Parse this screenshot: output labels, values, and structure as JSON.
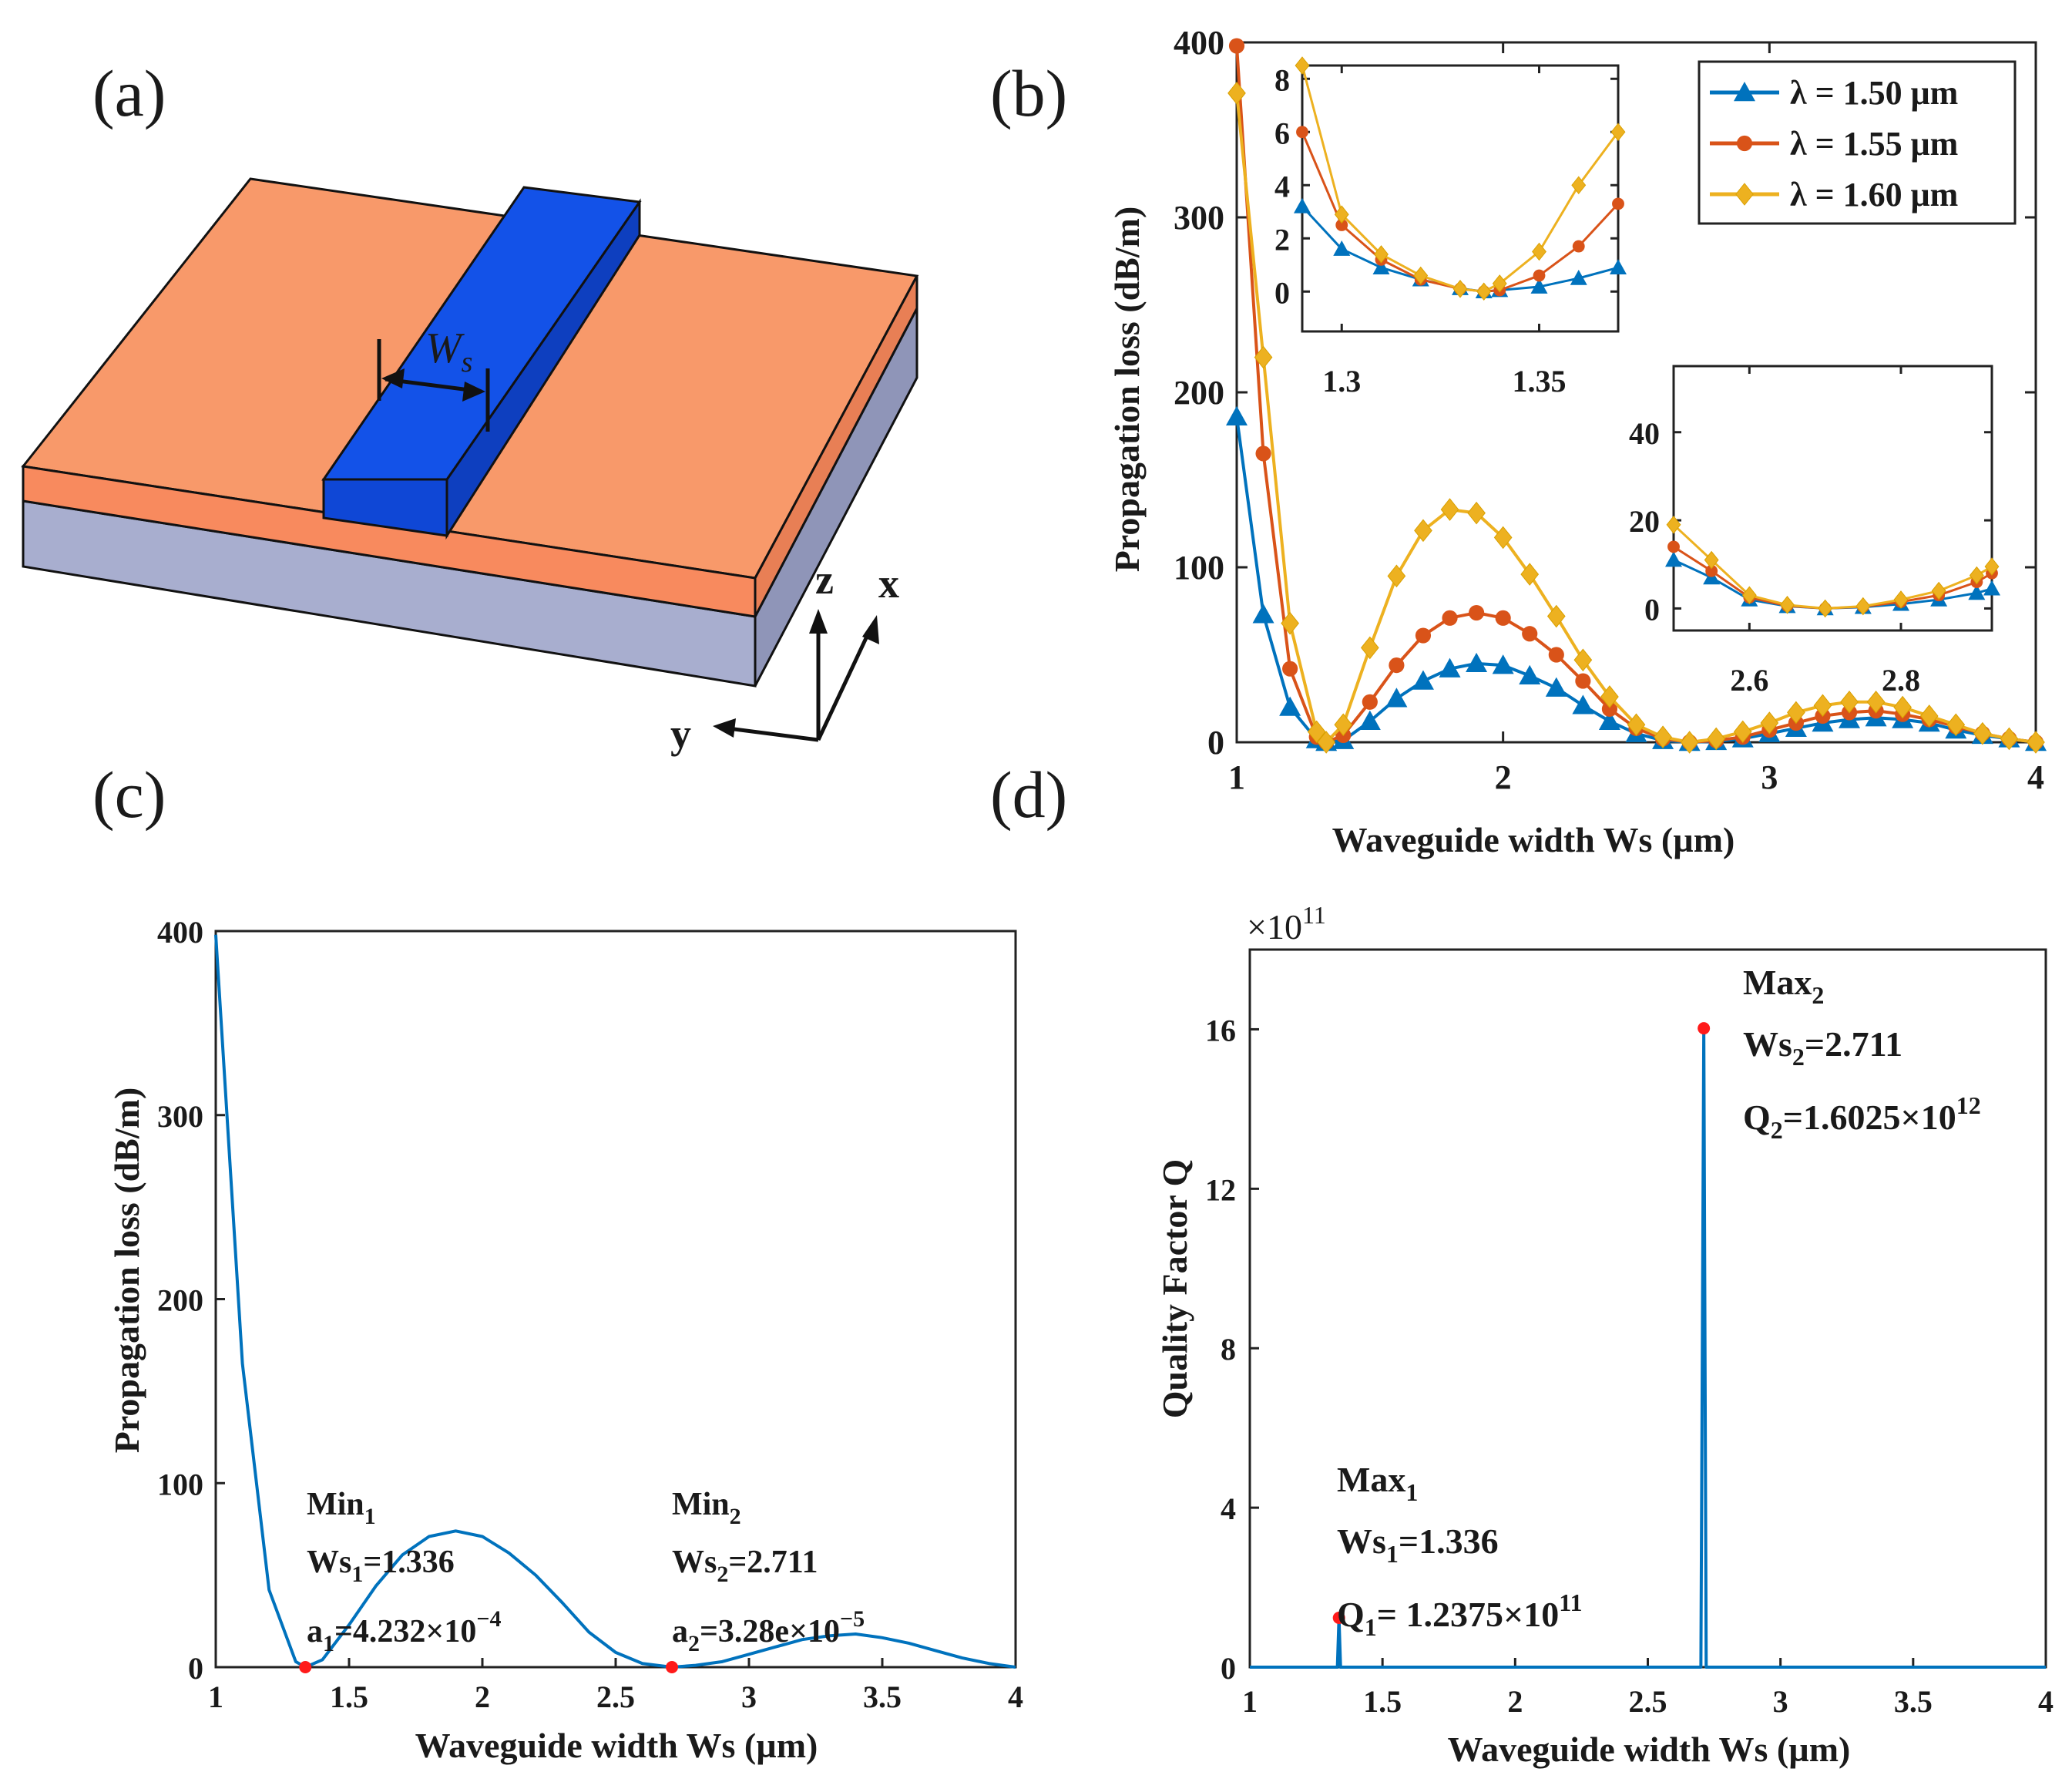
{
  "panels": {
    "a": "(a)",
    "b": "(b)",
    "c": "(c)",
    "d": "(d)"
  },
  "schematic": {
    "width_label": "W",
    "width_sub": "s",
    "axis_z": "z",
    "axis_x": "x",
    "axis_y": "y",
    "colors": {
      "slab_top": "#F8996A",
      "slab_front": "#F88A5E",
      "substrate": "#A8AECF",
      "ridge_top": "#1352E8",
      "ridge_front": "#0F47D6",
      "ridge_side": "#0E3FBF"
    }
  },
  "chart_data": [
    {
      "id": "b",
      "type": "line",
      "xlabel": "Waveguide width Ws (µm)",
      "ylabel": "Propagation loss (dB/m)",
      "xlim": [
        1,
        4
      ],
      "ylim": [
        0,
        400
      ],
      "xticks": [
        "1",
        "2",
        "3",
        "4"
      ],
      "yticks": [
        "0",
        "100",
        "200",
        "300",
        "400"
      ],
      "legend_position": "top-right",
      "series": [
        {
          "name": "λ = 1.50 μm",
          "color": "#0072BD",
          "marker": "triangle",
          "x": [
            1.0,
            1.1,
            1.2,
            1.3,
            1.336,
            1.4,
            1.5,
            1.6,
            1.7,
            1.8,
            1.9,
            2.0,
            2.1,
            2.2,
            2.3,
            2.4,
            2.5,
            2.6,
            2.7,
            2.8,
            2.9,
            3.0,
            3.1,
            3.2,
            3.3,
            3.4,
            3.5,
            3.6,
            3.7,
            3.8,
            3.9,
            4.0
          ],
          "values": [
            186,
            73,
            20,
            1.5,
            0,
            1,
            12,
            25,
            35,
            42,
            45,
            44,
            38,
            31,
            21,
            12,
            5,
            1,
            0,
            0.5,
            2,
            5,
            8,
            11,
            13,
            14,
            13,
            11,
            7,
            4,
            2,
            0
          ]
        },
        {
          "name": "λ = 1.55 μm",
          "color": "#D95319",
          "marker": "circle",
          "x": [
            1.0,
            1.1,
            1.2,
            1.3,
            1.336,
            1.4,
            1.5,
            1.6,
            1.7,
            1.8,
            1.9,
            2.0,
            2.1,
            2.2,
            2.3,
            2.4,
            2.5,
            2.6,
            2.7,
            2.8,
            2.9,
            3.0,
            3.1,
            3.2,
            3.3,
            3.4,
            3.5,
            3.6,
            3.7,
            3.8,
            3.9,
            4.0
          ],
          "values": [
            398,
            165,
            42,
            3,
            0,
            4,
            23,
            44,
            61,
            71,
            74,
            71,
            62,
            50,
            35,
            19,
            8,
            2,
            0,
            1,
            3,
            7,
            11,
            15,
            17,
            18,
            16,
            13,
            9,
            5,
            2,
            0
          ]
        },
        {
          "name": "λ = 1.60 μm",
          "color": "#EDB120",
          "marker": "diamond",
          "x": [
            1.0,
            1.1,
            1.2,
            1.3,
            1.336,
            1.4,
            1.5,
            1.6,
            1.7,
            1.8,
            1.9,
            2.0,
            2.1,
            2.2,
            2.3,
            2.4,
            2.5,
            2.6,
            2.7,
            2.8,
            2.9,
            3.0,
            3.1,
            3.2,
            3.3,
            3.4,
            3.5,
            3.6,
            3.7,
            3.8,
            3.9,
            4.0
          ],
          "values": [
            371,
            220,
            68,
            6,
            0,
            10,
            54,
            95,
            121,
            133,
            131,
            117,
            96,
            72,
            47,
            26,
            10,
            3,
            0,
            2,
            6,
            11,
            17,
            21,
            23,
            23,
            20,
            15,
            10,
            5,
            2,
            0
          ]
        }
      ],
      "insets": [
        {
          "id": "b-inset-1",
          "xlim": [
            1.29,
            1.37
          ],
          "ylim": [
            -1.5,
            8.5
          ],
          "xticks": [
            "1.3",
            "1.35"
          ],
          "yticks": [
            "0",
            "2",
            "4",
            "6",
            "8"
          ],
          "series": [
            {
              "name": "λ = 1.50 μm",
              "x": [
                1.29,
                1.3,
                1.31,
                1.32,
                1.33,
                1.336,
                1.34,
                1.35,
                1.36,
                1.37
              ],
              "values": [
                3.2,
                1.6,
                0.9,
                0.45,
                0.12,
                0,
                0.05,
                0.18,
                0.5,
                0.9
              ]
            },
            {
              "name": "λ = 1.55 μm",
              "x": [
                1.29,
                1.3,
                1.31,
                1.32,
                1.33,
                1.336,
                1.34,
                1.35,
                1.36,
                1.37
              ],
              "values": [
                6.0,
                2.5,
                1.2,
                0.45,
                0.1,
                0,
                0.05,
                0.6,
                1.7,
                3.3
              ]
            },
            {
              "name": "λ = 1.60 μm",
              "x": [
                1.29,
                1.3,
                1.31,
                1.32,
                1.33,
                1.336,
                1.34,
                1.35,
                1.36,
                1.37
              ],
              "values": [
                8.5,
                2.9,
                1.4,
                0.6,
                0.1,
                0,
                0.3,
                1.5,
                4.0,
                6.0
              ]
            }
          ]
        },
        {
          "id": "b-inset-2",
          "xlim": [
            2.5,
            2.92
          ],
          "ylim": [
            -5,
            55
          ],
          "xticks": [
            "2.6",
            "2.8"
          ],
          "yticks": [
            "0",
            "20",
            "40"
          ],
          "series": [
            {
              "name": "λ = 1.50 μm",
              "x": [
                2.5,
                2.55,
                2.6,
                2.65,
                2.7,
                2.75,
                2.8,
                2.85,
                2.9,
                2.92
              ],
              "values": [
                11,
                7,
                2,
                0.5,
                0,
                0.3,
                1,
                2,
                3.5,
                4.5
              ]
            },
            {
              "name": "λ = 1.55 μm",
              "x": [
                2.5,
                2.55,
                2.6,
                2.65,
                2.7,
                2.75,
                2.8,
                2.85,
                2.9,
                2.92
              ],
              "values": [
                14,
                8.5,
                2.5,
                0.6,
                0,
                0.4,
                1.5,
                3,
                6,
                8
              ]
            },
            {
              "name": "λ = 1.60 μm",
              "x": [
                2.5,
                2.55,
                2.6,
                2.65,
                2.7,
                2.75,
                2.8,
                2.85,
                2.9,
                2.92
              ],
              "values": [
                19,
                11,
                3,
                0.8,
                0,
                0.5,
                2,
                4,
                7.5,
                9.5
              ]
            }
          ]
        }
      ]
    },
    {
      "id": "c",
      "type": "line",
      "xlabel": "Waveguide width Ws (µm)",
      "ylabel": "Propagation loss (dB/m)",
      "xlim": [
        1,
        4
      ],
      "ylim": [
        0,
        400
      ],
      "xticks": [
        "1",
        "1.5",
        "2",
        "2.5",
        "3",
        "3.5",
        "4"
      ],
      "yticks": [
        "0",
        "100",
        "200",
        "300",
        "400"
      ],
      "series": [
        {
          "color": "#0072BD",
          "x": [
            1.0,
            1.1,
            1.2,
            1.3,
            1.336,
            1.4,
            1.5,
            1.6,
            1.7,
            1.8,
            1.9,
            2.0,
            2.1,
            2.2,
            2.3,
            2.4,
            2.5,
            2.6,
            2.711,
            2.8,
            2.9,
            3.0,
            3.1,
            3.2,
            3.3,
            3.4,
            3.5,
            3.6,
            3.7,
            3.8,
            3.9,
            4.0
          ],
          "values": [
            398,
            165,
            42,
            3,
            0,
            4,
            23,
            44,
            61,
            71,
            74,
            71,
            62,
            50,
            35,
            19,
            8,
            2,
            0,
            1,
            3,
            7,
            11,
            15,
            17,
            18,
            16,
            13,
            9,
            5,
            2,
            0
          ]
        }
      ],
      "markers": [
        {
          "x": 1.336,
          "y": 0
        },
        {
          "x": 2.711,
          "y": 0
        }
      ],
      "annotations": [
        {
          "title": "Min",
          "title_sub": "1",
          "line2": "Ws",
          "line2_sub": "1",
          "line2_rest": "=1.336",
          "line3": "a",
          "line3_sub": "1",
          "line3_rest": "=4.232×10",
          "line3_sup": "−4"
        },
        {
          "title": "Min",
          "title_sub": "2",
          "line2": "Ws",
          "line2_sub": "2",
          "line2_rest": "=2.711",
          "line3": "a",
          "line3_sub": "2",
          "line3_rest": "=3.28e×10",
          "line3_sup": "−5"
        }
      ]
    },
    {
      "id": "d",
      "type": "line",
      "xlabel": "Waveguide width Ws (µm)",
      "ylabel": "Quality Factor Q",
      "exponent_label": "×10",
      "exponent_power": "11",
      "xlim": [
        1,
        4
      ],
      "ylim": [
        0,
        18
      ],
      "xticks": [
        "1",
        "1.5",
        "2",
        "2.5",
        "3",
        "3.5",
        "4"
      ],
      "yticks": [
        "0",
        "4",
        "8",
        "12",
        "16"
      ],
      "series": [
        {
          "color": "#0072BD",
          "x": [
            1.0,
            1.33,
            1.336,
            1.342,
            2.7,
            2.711,
            2.72,
            4.0
          ],
          "values": [
            0,
            0,
            1.2375,
            0,
            0,
            16.025,
            0,
            0
          ]
        }
      ],
      "markers": [
        {
          "x": 1.336,
          "y": 1.2375
        },
        {
          "x": 2.711,
          "y": 16.025
        }
      ],
      "annotations": [
        {
          "title": "Max",
          "title_sub": "1",
          "line2": "Ws",
          "line2_sub": "1",
          "line2_rest": "=1.336",
          "line3": "Q",
          "line3_sub": "1",
          "line3_rest": "= 1.2375×10",
          "line3_sup": "11"
        },
        {
          "title": "Max",
          "title_sub": "2",
          "line2": "Ws",
          "line2_sub": "2",
          "line2_rest": "=2.711",
          "line3": "Q",
          "line3_sub": "2",
          "line3_rest": "=1.6025×10",
          "line3_sup": "12"
        }
      ]
    }
  ]
}
